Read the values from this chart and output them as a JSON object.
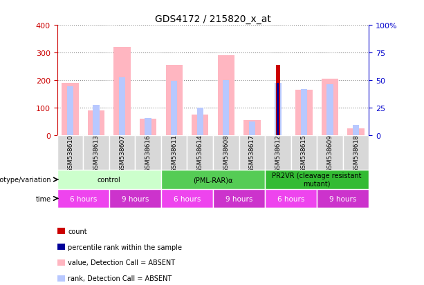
{
  "title": "GDS4172 / 215820_x_at",
  "samples": [
    "GSM538610",
    "GSM538613",
    "GSM538607",
    "GSM538616",
    "GSM538611",
    "GSM538614",
    "GSM538608",
    "GSM538617",
    "GSM538612",
    "GSM538615",
    "GSM538609",
    "GSM538618"
  ],
  "value_absent": [
    190,
    90,
    320,
    60,
    255,
    75,
    290,
    55,
    0,
    165,
    205,
    25
  ],
  "rank_absent": [
    178,
    110,
    210,
    63,
    197,
    100,
    200,
    50,
    190,
    168,
    185,
    38
  ],
  "count": [
    0,
    0,
    0,
    0,
    0,
    0,
    0,
    0,
    256,
    0,
    0,
    0
  ],
  "percentile_rank": [
    0,
    0,
    0,
    0,
    0,
    0,
    0,
    0,
    190,
    0,
    0,
    0
  ],
  "ylim_left": [
    0,
    400
  ],
  "ylim_right": [
    0,
    100
  ],
  "yticks_left": [
    0,
    100,
    200,
    300,
    400
  ],
  "yticks_right": [
    0,
    25,
    50,
    75,
    100
  ],
  "ytick_labels_right": [
    "0",
    "25",
    "50",
    "75",
    "100%"
  ],
  "color_value_absent": "#FFB6C1",
  "color_rank_absent": "#B8C8FF",
  "color_count": "#CC0000",
  "color_percentile": "#000099",
  "groups": [
    {
      "label": "control",
      "span": [
        0,
        4
      ],
      "color": "#CCFFCC"
    },
    {
      "label": "(PML-RAR)α",
      "span": [
        4,
        8
      ],
      "color": "#55CC55"
    },
    {
      "label": "PR2VR (cleavage resistant\nmutant)",
      "span": [
        8,
        12
      ],
      "color": "#33BB33"
    }
  ],
  "time_groups": [
    {
      "label": "6 hours",
      "span": [
        0,
        2
      ],
      "color": "#EE44EE"
    },
    {
      "label": "9 hours",
      "span": [
        2,
        4
      ],
      "color": "#CC33CC"
    },
    {
      "label": "6 hours",
      "span": [
        4,
        6
      ],
      "color": "#EE44EE"
    },
    {
      "label": "9 hours",
      "span": [
        6,
        8
      ],
      "color": "#CC33CC"
    },
    {
      "label": "6 hours",
      "span": [
        8,
        10
      ],
      "color": "#EE44EE"
    },
    {
      "label": "9 hours",
      "span": [
        10,
        12
      ],
      "color": "#CC33CC"
    }
  ],
  "bg_color": "#FFFFFF",
  "axis_color_left": "#CC0000",
  "axis_color_right": "#0000CC",
  "grid_color": "#888888",
  "sample_box_color": "#D8D8D8",
  "legend_items": [
    {
      "color": "#CC0000",
      "label": "count"
    },
    {
      "color": "#000099",
      "label": "percentile rank within the sample"
    },
    {
      "color": "#FFB6C1",
      "label": "value, Detection Call = ABSENT"
    },
    {
      "color": "#B8C8FF",
      "label": "rank, Detection Call = ABSENT"
    }
  ]
}
